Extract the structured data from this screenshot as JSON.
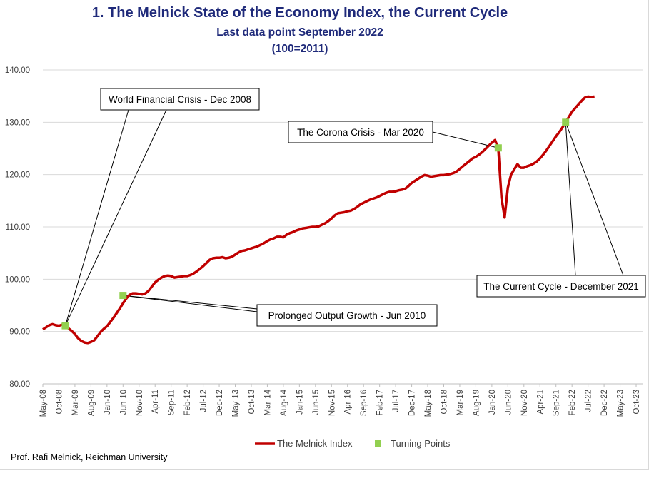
{
  "chart_data": {
    "type": "line",
    "title": "1.  The Melnick State of the Economy Index, the Current Cycle",
    "subtitle": "Last data point September 2022",
    "subtitle2": "(100=2011)",
    "ylim": [
      80,
      140
    ],
    "y_ticks": [
      "80.00",
      "90.00",
      "100.00",
      "110.00",
      "120.00",
      "130.00",
      "140.00"
    ],
    "x_range": [
      "2008-05",
      "2023-12"
    ],
    "x_ticks": [
      "May-08",
      "Oct-08",
      "Mar-09",
      "Aug-09",
      "Jan-10",
      "Jun-10",
      "Nov-10",
      "Apr-11",
      "Sep-11",
      "Feb-12",
      "Jul-12",
      "Dec-12",
      "May-13",
      "Oct-13",
      "Mar-14",
      "Aug-14",
      "Jan-15",
      "Jun-15",
      "Nov-15",
      "Apr-16",
      "Sep-16",
      "Feb-17",
      "Jul-17",
      "Dec-17",
      "May-18",
      "Oct-18",
      "Mar-19",
      "Aug-19",
      "Jan-20",
      "Jun-20",
      "Nov-20",
      "Apr-21",
      "Sep-21",
      "Feb-22",
      "Jul-22",
      "Dec-22",
      "May-23",
      "Oct-23"
    ],
    "grid": true,
    "legend_position": "bottom",
    "series": [
      {
        "name": "The Melnick Index",
        "color": "#c00000",
        "points": [
          [
            "2008-05",
            90.4
          ],
          [
            "2008-06",
            90.8
          ],
          [
            "2008-07",
            91.2
          ],
          [
            "2008-08",
            91.4
          ],
          [
            "2008-09",
            91.2
          ],
          [
            "2008-10",
            91.1
          ],
          [
            "2008-11",
            91.3
          ],
          [
            "2008-12",
            91.0
          ],
          [
            "2009-01",
            90.6
          ],
          [
            "2009-02",
            90.1
          ],
          [
            "2009-03",
            89.5
          ],
          [
            "2009-04",
            88.7
          ],
          [
            "2009-05",
            88.2
          ],
          [
            "2009-06",
            87.9
          ],
          [
            "2009-07",
            87.8
          ],
          [
            "2009-08",
            88.0
          ],
          [
            "2009-09",
            88.3
          ],
          [
            "2009-10",
            89.1
          ],
          [
            "2009-11",
            89.9
          ],
          [
            "2009-12",
            90.5
          ],
          [
            "2010-01",
            91.0
          ],
          [
            "2010-02",
            91.8
          ],
          [
            "2010-03",
            92.6
          ],
          [
            "2010-04",
            93.5
          ],
          [
            "2010-05",
            94.4
          ],
          [
            "2010-06",
            95.4
          ],
          [
            "2010-07",
            96.3
          ],
          [
            "2010-08",
            97.0
          ],
          [
            "2010-09",
            97.3
          ],
          [
            "2010-10",
            97.3
          ],
          [
            "2010-11",
            97.2
          ],
          [
            "2010-12",
            97.1
          ],
          [
            "2011-01",
            97.3
          ],
          [
            "2011-02",
            97.8
          ],
          [
            "2011-03",
            98.6
          ],
          [
            "2011-04",
            99.4
          ],
          [
            "2011-05",
            99.9
          ],
          [
            "2011-06",
            100.3
          ],
          [
            "2011-07",
            100.6
          ],
          [
            "2011-08",
            100.7
          ],
          [
            "2011-09",
            100.6
          ],
          [
            "2011-10",
            100.3
          ],
          [
            "2011-11",
            100.4
          ],
          [
            "2011-12",
            100.5
          ],
          [
            "2012-01",
            100.6
          ],
          [
            "2012-02",
            100.6
          ],
          [
            "2012-03",
            100.8
          ],
          [
            "2012-04",
            101.1
          ],
          [
            "2012-05",
            101.5
          ],
          [
            "2012-06",
            102.0
          ],
          [
            "2012-07",
            102.5
          ],
          [
            "2012-08",
            103.1
          ],
          [
            "2012-09",
            103.7
          ],
          [
            "2012-10",
            104.0
          ],
          [
            "2012-11",
            104.1
          ],
          [
            "2012-12",
            104.1
          ],
          [
            "2013-01",
            104.2
          ],
          [
            "2013-02",
            104.0
          ],
          [
            "2013-03",
            104.1
          ],
          [
            "2013-04",
            104.3
          ],
          [
            "2013-05",
            104.7
          ],
          [
            "2013-06",
            105.1
          ],
          [
            "2013-07",
            105.4
          ],
          [
            "2013-08",
            105.5
          ],
          [
            "2013-09",
            105.7
          ],
          [
            "2013-10",
            105.9
          ],
          [
            "2013-11",
            106.1
          ],
          [
            "2013-12",
            106.3
          ],
          [
            "2014-01",
            106.6
          ],
          [
            "2014-02",
            106.9
          ],
          [
            "2014-03",
            107.3
          ],
          [
            "2014-04",
            107.6
          ],
          [
            "2014-05",
            107.8
          ],
          [
            "2014-06",
            108.1
          ],
          [
            "2014-07",
            108.1
          ],
          [
            "2014-08",
            108.0
          ],
          [
            "2014-09",
            108.5
          ],
          [
            "2014-10",
            108.8
          ],
          [
            "2014-11",
            109.0
          ],
          [
            "2014-12",
            109.3
          ],
          [
            "2015-01",
            109.5
          ],
          [
            "2015-02",
            109.7
          ],
          [
            "2015-03",
            109.8
          ],
          [
            "2015-04",
            109.9
          ],
          [
            "2015-05",
            110.0
          ],
          [
            "2015-06",
            110.0
          ],
          [
            "2015-07",
            110.1
          ],
          [
            "2015-08",
            110.4
          ],
          [
            "2015-09",
            110.7
          ],
          [
            "2015-10",
            111.1
          ],
          [
            "2015-11",
            111.6
          ],
          [
            "2015-12",
            112.2
          ],
          [
            "2016-01",
            112.6
          ],
          [
            "2016-02",
            112.7
          ],
          [
            "2016-03",
            112.8
          ],
          [
            "2016-04",
            113.0
          ],
          [
            "2016-05",
            113.1
          ],
          [
            "2016-06",
            113.4
          ],
          [
            "2016-07",
            113.8
          ],
          [
            "2016-08",
            114.3
          ],
          [
            "2016-09",
            114.6
          ],
          [
            "2016-10",
            114.9
          ],
          [
            "2016-11",
            115.2
          ],
          [
            "2016-12",
            115.4
          ],
          [
            "2017-01",
            115.6
          ],
          [
            "2017-02",
            115.9
          ],
          [
            "2017-03",
            116.2
          ],
          [
            "2017-04",
            116.5
          ],
          [
            "2017-05",
            116.7
          ],
          [
            "2017-06",
            116.7
          ],
          [
            "2017-07",
            116.8
          ],
          [
            "2017-08",
            117.0
          ],
          [
            "2017-09",
            117.1
          ],
          [
            "2017-10",
            117.3
          ],
          [
            "2017-11",
            117.8
          ],
          [
            "2017-12",
            118.4
          ],
          [
            "2018-01",
            118.8
          ],
          [
            "2018-02",
            119.2
          ],
          [
            "2018-03",
            119.6
          ],
          [
            "2018-04",
            119.9
          ],
          [
            "2018-05",
            119.8
          ],
          [
            "2018-06",
            119.6
          ],
          [
            "2018-07",
            119.7
          ],
          [
            "2018-08",
            119.8
          ],
          [
            "2018-09",
            119.9
          ],
          [
            "2018-10",
            119.9
          ],
          [
            "2018-11",
            120.0
          ],
          [
            "2018-12",
            120.1
          ],
          [
            "2019-01",
            120.3
          ],
          [
            "2019-02",
            120.6
          ],
          [
            "2019-03",
            121.1
          ],
          [
            "2019-04",
            121.6
          ],
          [
            "2019-05",
            122.1
          ],
          [
            "2019-06",
            122.6
          ],
          [
            "2019-07",
            123.1
          ],
          [
            "2019-08",
            123.4
          ],
          [
            "2019-09",
            123.8
          ],
          [
            "2019-10",
            124.3
          ],
          [
            "2019-11",
            124.9
          ],
          [
            "2019-12",
            125.5
          ],
          [
            "2020-01",
            126.1
          ],
          [
            "2020-02",
            126.6
          ],
          [
            "2020-03",
            125.0
          ],
          [
            "2020-04",
            115.5
          ],
          [
            "2020-05",
            111.8
          ],
          [
            "2020-06",
            117.5
          ],
          [
            "2020-07",
            120.0
          ],
          [
            "2020-08",
            121.0
          ],
          [
            "2020-09",
            122.0
          ],
          [
            "2020-10",
            121.3
          ],
          [
            "2020-11",
            121.3
          ],
          [
            "2020-12",
            121.6
          ],
          [
            "2021-01",
            121.8
          ],
          [
            "2021-02",
            122.1
          ],
          [
            "2021-03",
            122.5
          ],
          [
            "2021-04",
            123.1
          ],
          [
            "2021-05",
            123.8
          ],
          [
            "2021-06",
            124.6
          ],
          [
            "2021-07",
            125.5
          ],
          [
            "2021-08",
            126.4
          ],
          [
            "2021-09",
            127.3
          ],
          [
            "2021-10",
            128.1
          ],
          [
            "2021-11",
            129.0
          ],
          [
            "2021-12",
            130.0
          ],
          [
            "2022-01",
            131.0
          ],
          [
            "2022-02",
            132.0
          ],
          [
            "2022-03",
            132.7
          ],
          [
            "2022-04",
            133.4
          ],
          [
            "2022-05",
            134.1
          ],
          [
            "2022-06",
            134.7
          ],
          [
            "2022-07",
            134.9
          ],
          [
            "2022-08",
            134.8
          ],
          [
            "2022-09",
            134.9
          ]
        ]
      },
      {
        "name": "Turning Points",
        "color": "#92d050",
        "points": [
          [
            "2008-12",
            91.1
          ],
          [
            "2010-06",
            96.9
          ],
          [
            "2020-03",
            125.1
          ],
          [
            "2021-12",
            130.0
          ]
        ]
      }
    ],
    "annotations": [
      {
        "text": "World Financial Crisis - Dec 2008",
        "point": 0
      },
      {
        "text": "Prolonged Output Growth - Jun 2010",
        "point": 1
      },
      {
        "text": "The Corona Crisis - Mar 2020",
        "point": 2
      },
      {
        "text": "The Current Cycle - December 2021",
        "point": 3
      }
    ]
  },
  "footer": {
    "credit": "Prof. Rafi Melnick, Reichman University"
  }
}
